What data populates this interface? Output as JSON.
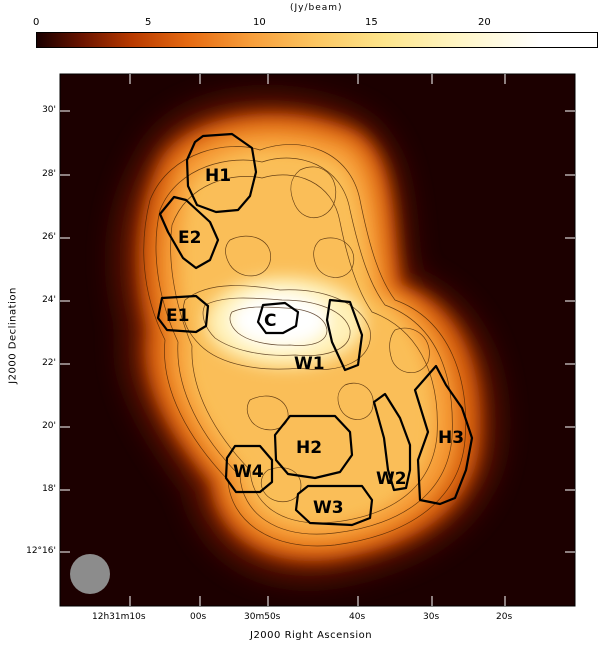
{
  "colorbar": {
    "unit_label": "(Jy/beam)",
    "ticks": [
      "0",
      "5",
      "10",
      "15",
      "20"
    ],
    "colors": [
      "#1a0000",
      "#7a1e00",
      "#d4590a",
      "#f7a63a",
      "#fde889",
      "#ffffff"
    ]
  },
  "y_axis": {
    "title": "J2000 Declination",
    "ticks": [
      "30'",
      "28'",
      "26'",
      "24'",
      "22'",
      "20'",
      "18'",
      "12°16'"
    ]
  },
  "x_axis": {
    "title": "J2000 Right Ascension",
    "ticks": [
      "12h31m10s",
      "00s",
      "30m50s",
      "40s",
      "30s",
      "20s"
    ]
  },
  "regions": [
    {
      "name": "H1"
    },
    {
      "name": "E2"
    },
    {
      "name": "E1"
    },
    {
      "name": "C"
    },
    {
      "name": "W1"
    },
    {
      "name": "H2"
    },
    {
      "name": "W4"
    },
    {
      "name": "W2"
    },
    {
      "name": "H3"
    },
    {
      "name": "W3"
    }
  ],
  "beam": {
    "color": "#8c8c8c"
  }
}
